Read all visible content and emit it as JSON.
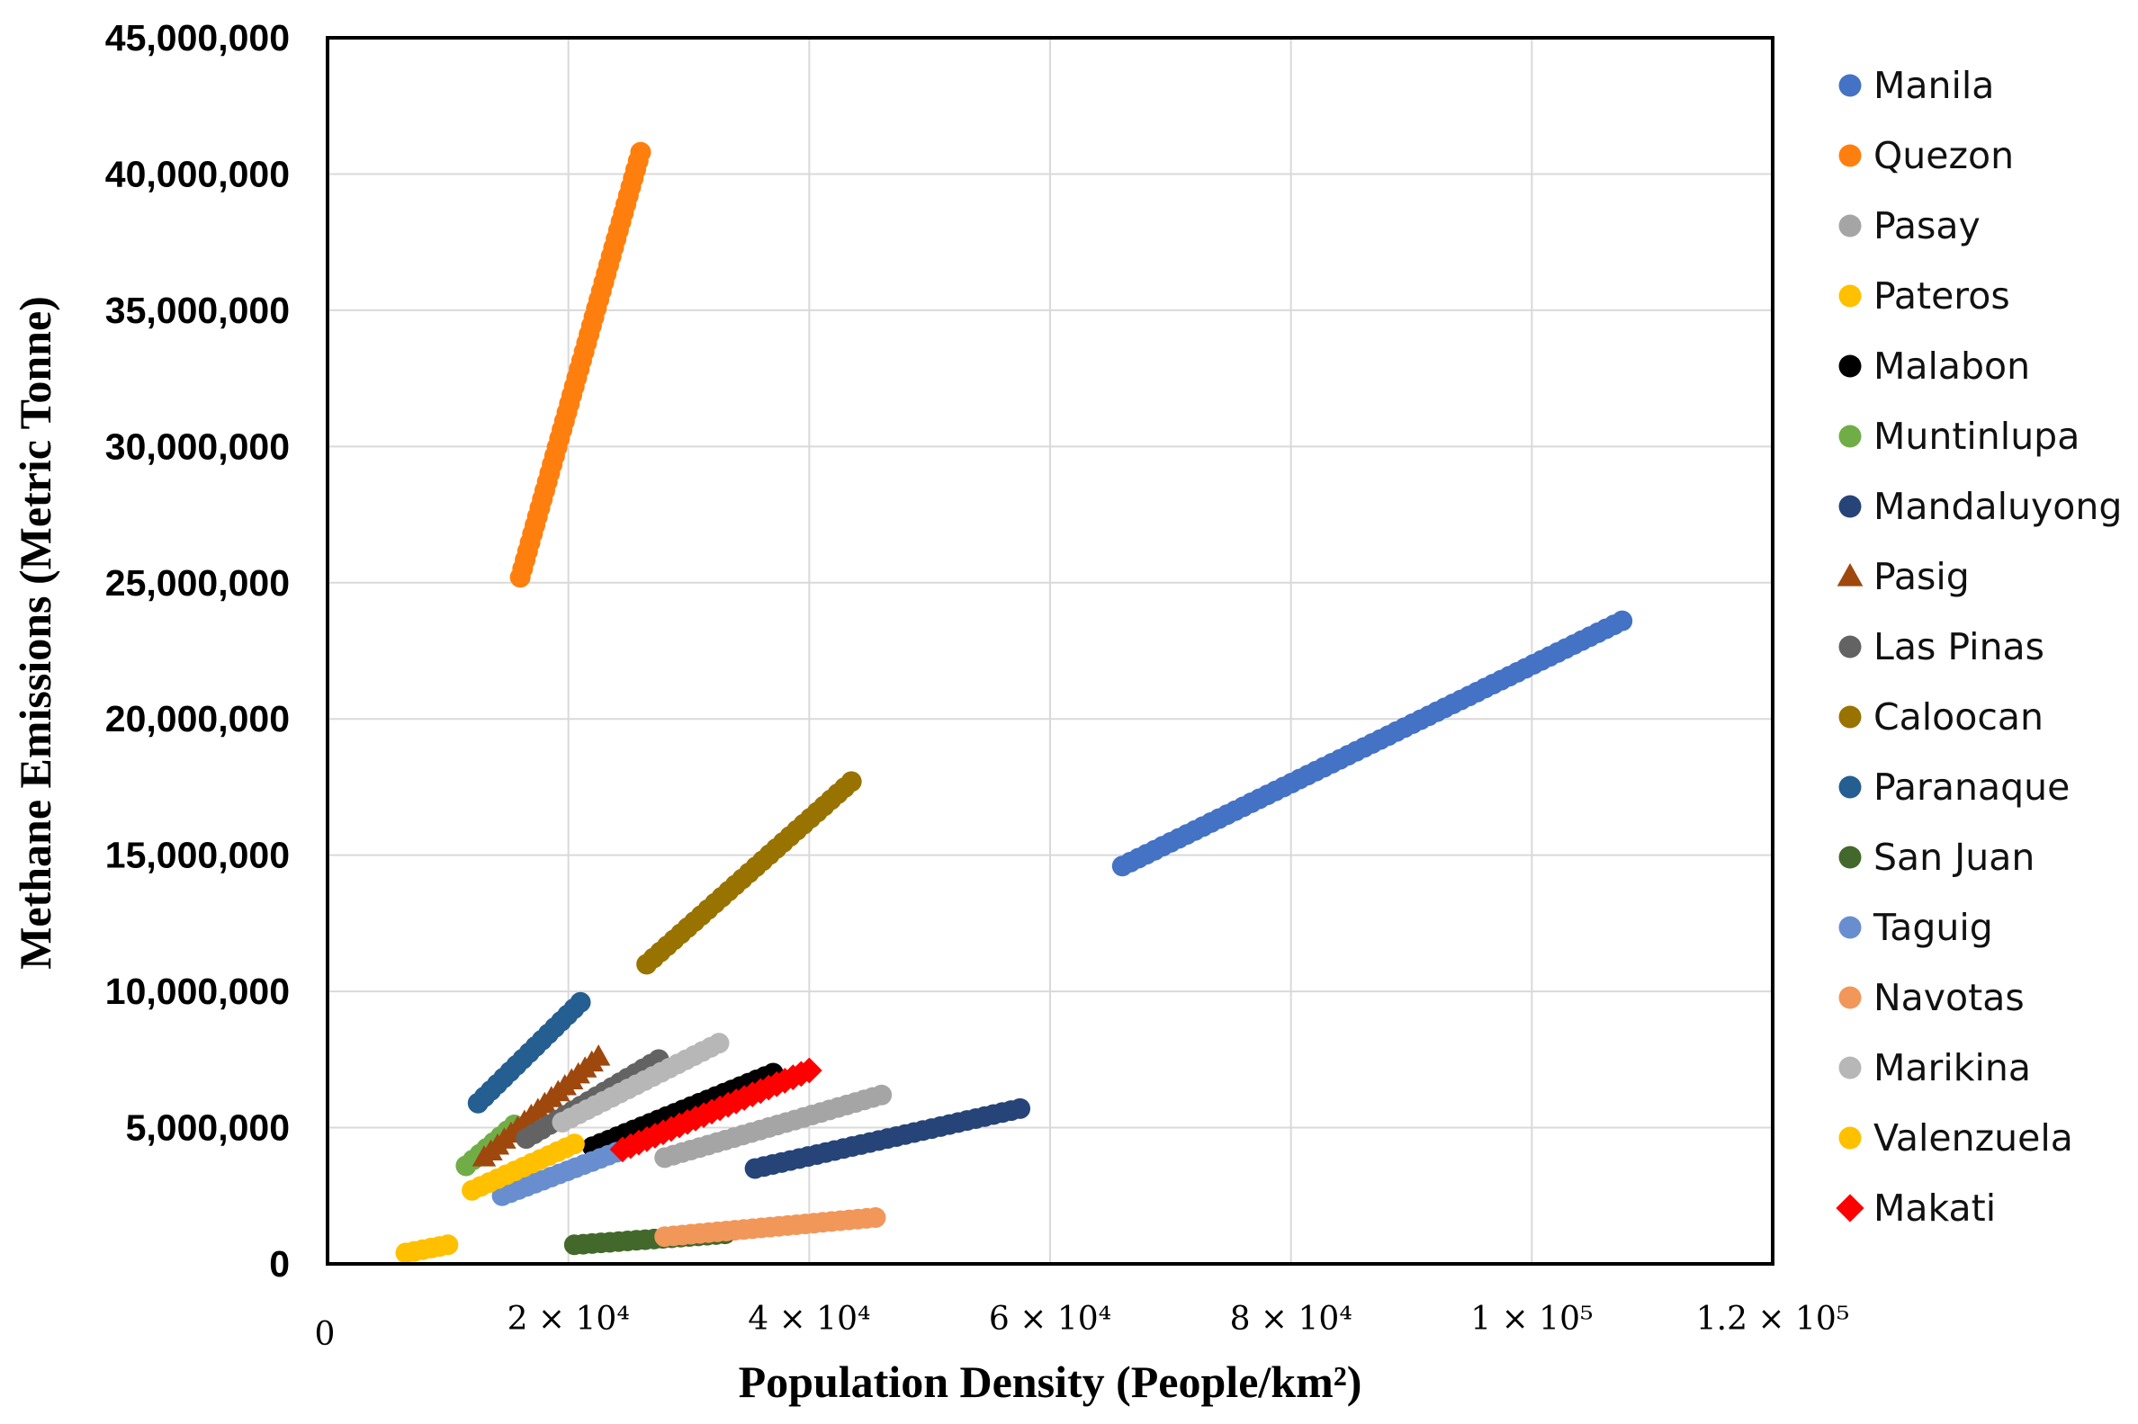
{
  "chart_data": {
    "type": "scatter",
    "xlabel": "Population Density (People/km²)",
    "ylabel": "Methane Emissions (Metric Tonne)",
    "xlim": [
      0,
      120000
    ],
    "ylim": [
      0,
      45000000
    ],
    "grid": true,
    "legend_position": "right",
    "x_ticks": [
      {
        "value": 0,
        "label": "0"
      },
      {
        "value": 20000,
        "label": "2 × 10⁴"
      },
      {
        "value": 40000,
        "label": "4 × 10⁴"
      },
      {
        "value": 60000,
        "label": "6 × 10⁴"
      },
      {
        "value": 80000,
        "label": "8 × 10⁴"
      },
      {
        "value": 100000,
        "label": "1 × 10⁵"
      },
      {
        "value": 120000,
        "label": "1.2 × 10⁵"
      }
    ],
    "y_ticks": [
      {
        "value": 0,
        "label": "0"
      },
      {
        "value": 5000000,
        "label": "5,000,000"
      },
      {
        "value": 10000000,
        "label": "10,000,000"
      },
      {
        "value": 15000000,
        "label": "15,000,000"
      },
      {
        "value": 20000000,
        "label": "20,000,000"
      },
      {
        "value": 25000000,
        "label": "25,000,000"
      },
      {
        "value": 30000000,
        "label": "30,000,000"
      },
      {
        "value": 35000000,
        "label": "35,000,000"
      },
      {
        "value": 40000000,
        "label": "40,000,000"
      },
      {
        "value": 45000000,
        "label": "45,000,000"
      }
    ],
    "series": [
      {
        "name": "Manila",
        "color": "#4472C4",
        "marker": "circle",
        "start": [
          66000,
          14600000
        ],
        "end": [
          107500,
          23600000
        ]
      },
      {
        "name": "Quezon",
        "color": "#FF7F0E",
        "marker": "circle",
        "start": [
          16000,
          25200000
        ],
        "end": [
          26000,
          40800000
        ]
      },
      {
        "name": "Pasay",
        "color": "#A5A5A5",
        "marker": "circle",
        "start": [
          28000,
          3900000
        ],
        "end": [
          46000,
          6200000
        ]
      },
      {
        "name": "Pateros",
        "color": "#FFC000",
        "marker": "circle",
        "start": [
          6500,
          400000
        ],
        "end": [
          10000,
          700000
        ]
      },
      {
        "name": "Malabon",
        "color": "#000000",
        "marker": "circle",
        "start": [
          22000,
          4300000
        ],
        "end": [
          37000,
          7000000
        ]
      },
      {
        "name": "Muntinlupa",
        "color": "#70AD47",
        "marker": "circle",
        "start": [
          11500,
          3600000
        ],
        "end": [
          15500,
          5100000
        ]
      },
      {
        "name": "Mandaluyong",
        "color": "#264478",
        "marker": "circle",
        "start": [
          35500,
          3500000
        ],
        "end": [
          57500,
          5700000
        ]
      },
      {
        "name": "Pasig",
        "color": "#9E480E",
        "marker": "triangle",
        "start": [
          13000,
          3900000
        ],
        "end": [
          22500,
          7600000
        ]
      },
      {
        "name": "Las Pinas",
        "color": "#636363",
        "marker": "circle",
        "start": [
          16500,
          4600000
        ],
        "end": [
          27500,
          7500000
        ]
      },
      {
        "name": "Caloocan",
        "color": "#997300",
        "marker": "circle",
        "start": [
          26500,
          11000000
        ],
        "end": [
          43500,
          17700000
        ]
      },
      {
        "name": "Paranaque",
        "color": "#255E91",
        "marker": "circle",
        "start": [
          12500,
          5900000
        ],
        "end": [
          21000,
          9600000
        ]
      },
      {
        "name": "San Juan",
        "color": "#43682B",
        "marker": "circle",
        "start": [
          20500,
          700000
        ],
        "end": [
          33000,
          1100000
        ]
      },
      {
        "name": "Taguig",
        "color": "#698ED0",
        "marker": "circle",
        "start": [
          14500,
          2500000
        ],
        "end": [
          24000,
          4100000
        ]
      },
      {
        "name": "Navotas",
        "color": "#F1975A",
        "marker": "circle",
        "start": [
          28000,
          1000000
        ],
        "end": [
          45500,
          1700000
        ]
      },
      {
        "name": "Marikina",
        "color": "#B7B7B7",
        "marker": "circle",
        "start": [
          19500,
          5200000
        ],
        "end": [
          32500,
          8100000
        ]
      },
      {
        "name": "Valenzuela",
        "color": "#FFC000",
        "marker": "circle",
        "start": [
          12000,
          2700000
        ],
        "end": [
          20500,
          4400000
        ]
      },
      {
        "name": "Makati",
        "color": "#FF0000",
        "marker": "diamond",
        "start": [
          24500,
          4200000
        ],
        "end": [
          40000,
          7100000
        ]
      }
    ]
  }
}
